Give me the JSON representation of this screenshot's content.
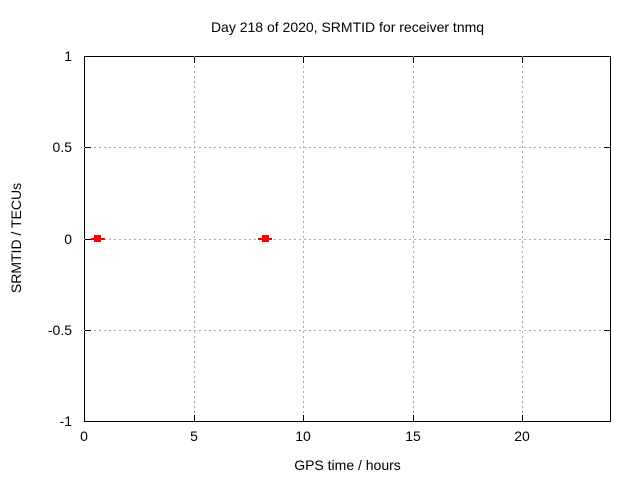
{
  "chart_data": {
    "type": "scatter",
    "title": "Day 218 of 2020, SRMTID for receiver tnmq",
    "xlabel": "GPS time / hours",
    "ylabel": "SRMTID / TECUs",
    "xlim": [
      0,
      24
    ],
    "ylim": [
      -1,
      1
    ],
    "x_ticks": [
      0,
      5,
      10,
      15,
      20
    ],
    "y_ticks": [
      -1,
      -0.5,
      0,
      0.5,
      1
    ],
    "grid": true,
    "legend": "none",
    "background_color": "#ffffff",
    "axis_color": "#000000",
    "grid_color": "#a9a9a9",
    "series": [
      {
        "name": "SRMTID",
        "marker": "filled-square",
        "color": "#ff0000",
        "points": [
          {
            "x": 0.63,
            "y": 0.0,
            "x_err": 0.32
          },
          {
            "x": 8.26,
            "y": 0.0,
            "x_err": 0.32
          }
        ]
      }
    ]
  }
}
